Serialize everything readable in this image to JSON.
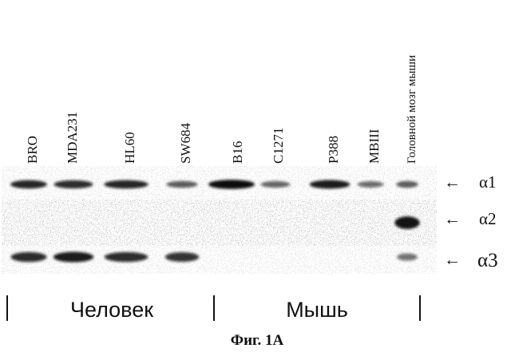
{
  "lanes": [
    {
      "label": "BRO",
      "a1": 0.85,
      "a2": 0.0,
      "a3": 0.8
    },
    {
      "label": "MDA231",
      "a1": 0.8,
      "a2": 0.0,
      "a3": 0.9
    },
    {
      "label": "HL60",
      "a1": 0.85,
      "a2": 0.0,
      "a3": 0.8
    },
    {
      "label": "SW684",
      "a1": 0.5,
      "a2": 0.0,
      "a3": 0.75
    },
    {
      "label": "B16",
      "a1": 1.0,
      "a2": 0.0,
      "a3": 0.0
    },
    {
      "label": "C1271",
      "a1": 0.45,
      "a2": 0.0,
      "a3": 0.0
    },
    {
      "label": "P388",
      "a1": 0.9,
      "a2": 0.0,
      "a3": 0.0
    },
    {
      "label": "MBIII",
      "a1": 0.4,
      "a2": 0.0,
      "a3": 0.0
    },
    {
      "label": "Головной мозг мыши",
      "a1": 0.5,
      "a2": 0.95,
      "a3": 0.35
    }
  ],
  "markers": [
    {
      "arrow": "←",
      "label": "α1"
    },
    {
      "arrow": "←",
      "label": "α2"
    },
    {
      "arrow": "←",
      "label": "α3"
    }
  ],
  "groups": [
    {
      "label": "Человек"
    },
    {
      "label": "Мышь"
    }
  ],
  "caption": "Фиг. 1A"
}
